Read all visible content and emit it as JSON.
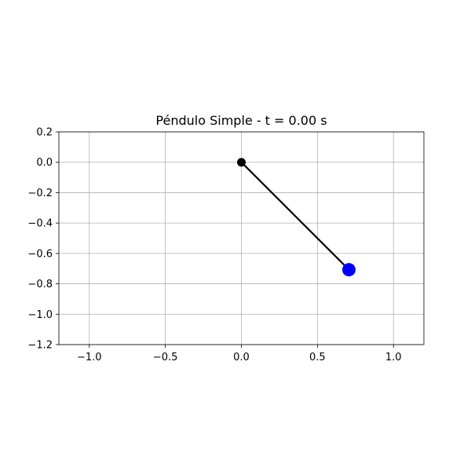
{
  "chart_data": {
    "type": "scatter",
    "title": "Péndulo Simple - t = 0.00 s",
    "xlabel": "",
    "ylabel": "",
    "xlim": [
      -1.2,
      1.2
    ],
    "ylim": [
      -1.2,
      0.2
    ],
    "grid": true,
    "x_ticks": [
      {
        "value": -1.0,
        "label": "−1.0"
      },
      {
        "value": -0.5,
        "label": "−0.5"
      },
      {
        "value": 0.0,
        "label": "0.0"
      },
      {
        "value": 0.5,
        "label": "0.5"
      },
      {
        "value": 1.0,
        "label": "1.0"
      }
    ],
    "y_ticks": [
      {
        "value": 0.2,
        "label": "0.2"
      },
      {
        "value": 0.0,
        "label": "0.0"
      },
      {
        "value": -0.2,
        "label": "−0.2"
      },
      {
        "value": -0.4,
        "label": "−0.4"
      },
      {
        "value": -0.6,
        "label": "−0.6"
      },
      {
        "value": -0.8,
        "label": "−0.8"
      },
      {
        "value": -1.0,
        "label": "−1.0"
      },
      {
        "value": -1.2,
        "label": "−1.2"
      }
    ],
    "pivot": {
      "x": 0.0,
      "y": 0.0,
      "color": "#000000"
    },
    "bob": {
      "x": 0.707,
      "y": -0.707,
      "color": "#0000ff"
    },
    "rod_color": "#000000"
  }
}
